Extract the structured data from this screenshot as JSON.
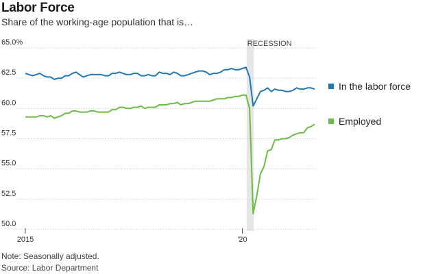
{
  "title": "Labor Force",
  "subtitle": "Share of the working-age population that is…",
  "note": "Note: Seasonally adjusted.",
  "source": "Source: Labor Department",
  "chart_data": {
    "type": "line",
    "title": "Labor Force",
    "subtitle": "Share of the working-age population that is…",
    "x_start": "2015-01",
    "x_tick_labels": [
      {
        "label": "2015",
        "date": "2015-01"
      },
      {
        "label": "'20",
        "date": "2020-01"
      }
    ],
    "y_tick_labels": [
      "65.0%",
      "62.5",
      "60.0",
      "57.5",
      "55.0",
      "52.5",
      "50.0"
    ],
    "y_ticks": [
      65.0,
      62.5,
      60.0,
      57.5,
      55.0,
      52.5,
      50.0
    ],
    "ylim": [
      50.0,
      65.0
    ],
    "grid": true,
    "legend_position": "right",
    "annotation": {
      "label": "RECESSION",
      "start": "2020-02",
      "end": "2020-04"
    },
    "series": [
      {
        "name": "In the labor force",
        "color": "#1f77b4",
        "values": [
          62.9,
          62.8,
          62.7,
          62.8,
          62.9,
          62.7,
          62.6,
          62.6,
          62.4,
          62.5,
          62.5,
          62.7,
          62.7,
          62.9,
          63.0,
          62.8,
          62.6,
          62.7,
          62.8,
          62.8,
          62.8,
          62.8,
          62.7,
          62.7,
          62.9,
          62.9,
          63.0,
          62.9,
          62.8,
          62.8,
          62.9,
          62.9,
          62.7,
          62.7,
          62.8,
          62.7,
          62.7,
          63.0,
          62.9,
          62.9,
          62.8,
          63.0,
          62.9,
          62.7,
          62.7,
          62.8,
          62.9,
          63.0,
          63.1,
          63.1,
          63.0,
          62.8,
          62.9,
          62.9,
          63.0,
          63.2,
          63.2,
          63.3,
          63.2,
          63.2,
          63.3,
          63.4,
          62.6,
          60.2,
          60.8,
          61.4,
          61.5,
          61.7,
          61.4,
          61.6,
          61.5,
          61.5,
          61.4,
          61.4,
          61.5,
          61.7,
          61.6,
          61.6,
          61.7,
          61.7,
          61.6
        ],
        "note_values": "monthly, Jan 2015 – Sep 2021"
      },
      {
        "name": "Employed",
        "color": "#6abd45",
        "values": [
          59.3,
          59.3,
          59.3,
          59.3,
          59.4,
          59.4,
          59.3,
          59.4,
          59.2,
          59.3,
          59.4,
          59.6,
          59.6,
          59.8,
          59.8,
          59.7,
          59.7,
          59.7,
          59.8,
          59.8,
          59.7,
          59.7,
          59.7,
          59.7,
          59.9,
          59.9,
          60.1,
          60.1,
          60.0,
          60.0,
          60.1,
          60.1,
          60.2,
          60.0,
          60.1,
          60.1,
          60.1,
          60.3,
          60.3,
          60.3,
          60.4,
          60.4,
          60.5,
          60.3,
          60.4,
          60.4,
          60.5,
          60.6,
          60.6,
          60.6,
          60.6,
          60.6,
          60.7,
          60.8,
          60.8,
          60.8,
          60.9,
          60.9,
          61.0,
          61.0,
          61.1,
          61.1,
          60.0,
          51.3,
          52.8,
          54.6,
          55.2,
          56.5,
          56.6,
          57.4,
          57.4,
          57.5,
          57.5,
          57.6,
          57.8,
          57.9,
          58.0,
          58.0,
          58.4,
          58.5,
          58.7
        ]
      }
    ]
  }
}
